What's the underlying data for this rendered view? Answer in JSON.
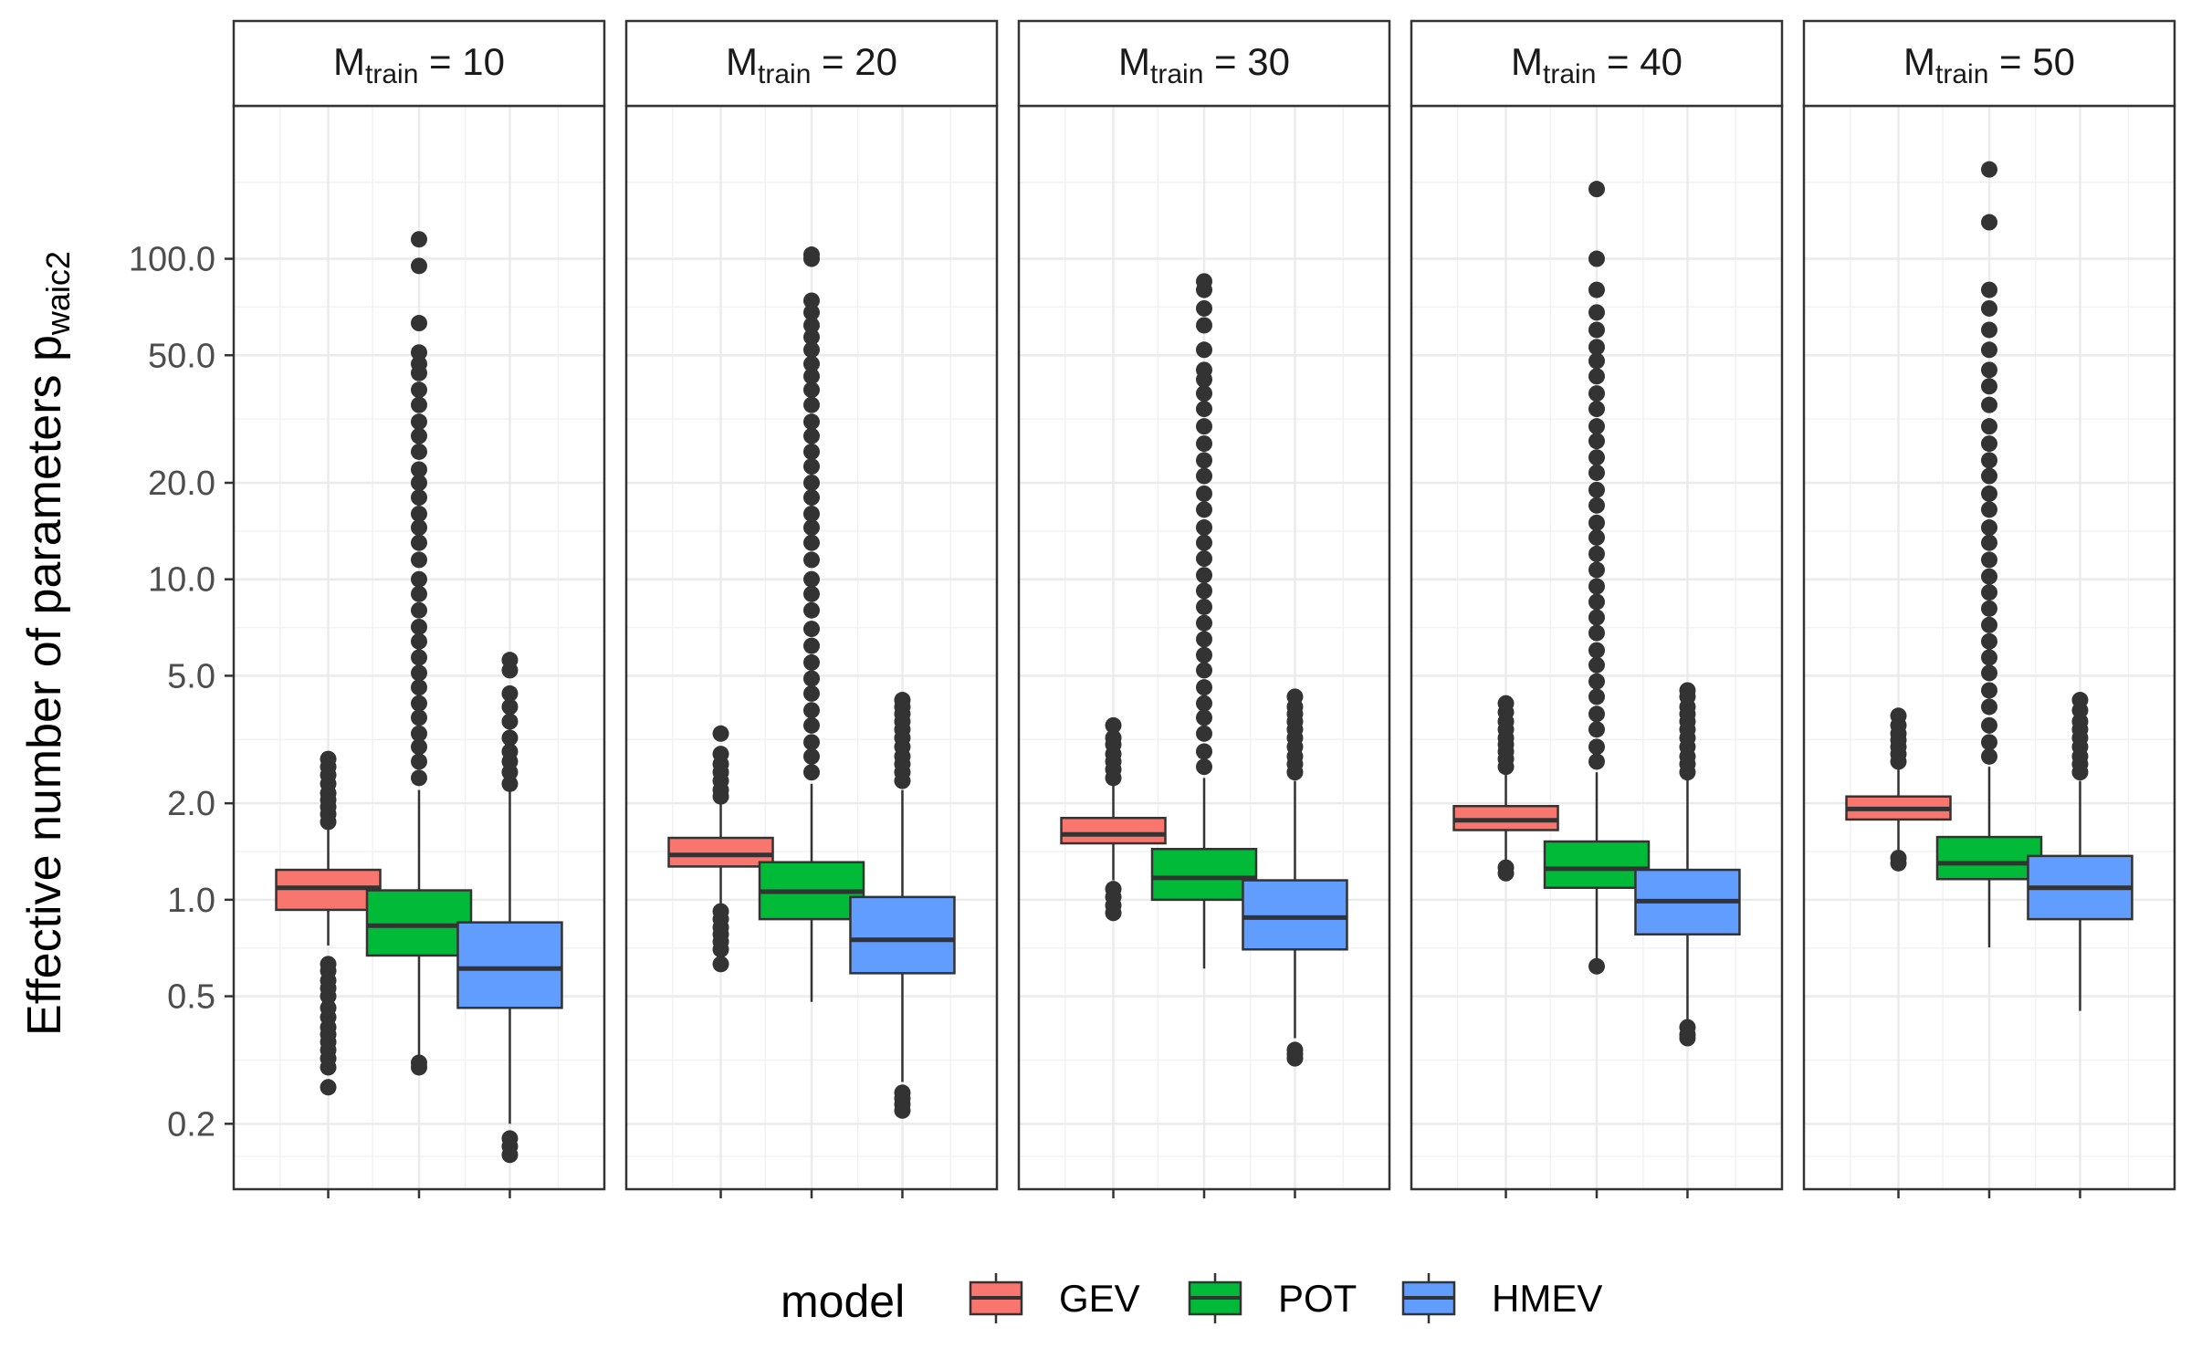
{
  "chart_data": {
    "type": "boxplot",
    "ylabel_main": "Effective number of parameters p",
    "ylabel_sub": "waic2",
    "y_scale": "log10",
    "ylim": [
      0.125,
      300
    ],
    "y_ticks": [
      {
        "value": 0.2,
        "label": "0.2"
      },
      {
        "value": 0.5,
        "label": "0.5"
      },
      {
        "value": 1,
        "label": "1.0"
      },
      {
        "value": 2,
        "label": "2.0"
      },
      {
        "value": 5,
        "label": "5.0"
      },
      {
        "value": 10,
        "label": "10.0"
      },
      {
        "value": 20,
        "label": "20.0"
      },
      {
        "value": 50,
        "label": "50.0"
      },
      {
        "value": 100,
        "label": "100.0"
      }
    ],
    "grid": true,
    "legend": {
      "title": "model",
      "position": "bottom",
      "entries": [
        {
          "name": "GEV",
          "color": "#F8766D"
        },
        {
          "name": "POT",
          "color": "#00BA38"
        },
        {
          "name": "HMEV",
          "color": "#619CFF"
        }
      ]
    },
    "facets": [
      {
        "strip_main": "M",
        "strip_sub": "train",
        "strip_value": " = 10",
        "boxes": [
          {
            "model": "GEV",
            "q1": 0.93,
            "median": 1.09,
            "q3": 1.24,
            "whisker_low": 0.72,
            "whisker_high": 1.65,
            "outliers_low": [
              0.26,
              0.3,
              0.32,
              0.34,
              0.36,
              0.38,
              0.4,
              0.43,
              0.46,
              0.5,
              0.53,
              0.56,
              0.6,
              0.63
            ],
            "outliers_high": [
              1.75,
              1.85,
              1.95,
              2.05,
              2.15,
              2.3,
              2.45,
              2.6,
              2.75
            ]
          },
          {
            "model": "POT",
            "q1": 0.67,
            "median": 0.83,
            "q3": 1.07,
            "whisker_low": 0.32,
            "whisker_high": 2.2,
            "outliers_low": [
              0.3,
              0.31
            ],
            "outliers_high": [
              2.4,
              2.7,
              3.0,
              3.3,
              3.7,
              4.1,
              4.6,
              5.1,
              5.7,
              6.4,
              7.1,
              8,
              9,
              10,
              11.5,
              13,
              14.5,
              16,
              18,
              20,
              22,
              25,
              28,
              31,
              35,
              39,
              44,
              47,
              51,
              63,
              95,
              115
            ]
          },
          {
            "model": "HMEV",
            "q1": 0.46,
            "median": 0.61,
            "q3": 0.85,
            "whisker_low": 0.2,
            "whisker_high": 2.2,
            "outliers_low": [
              0.16,
              0.17,
              0.18
            ],
            "outliers_high": [
              2.3,
              2.5,
              2.7,
              2.9,
              3.2,
              3.6,
              4.0,
              4.4,
              5.2,
              5.6
            ]
          }
        ]
      },
      {
        "strip_main": "M",
        "strip_sub": "train",
        "strip_value": " = 20",
        "boxes": [
          {
            "model": "GEV",
            "q1": 1.27,
            "median": 1.38,
            "q3": 1.56,
            "whisker_low": 0.97,
            "whisker_high": 2.0,
            "outliers_low": [
              0.63,
              0.7,
              0.74,
              0.78,
              0.82,
              0.87,
              0.92
            ],
            "outliers_high": [
              2.1,
              2.2,
              2.35,
              2.5,
              2.65,
              2.85,
              3.3
            ]
          },
          {
            "model": "POT",
            "q1": 0.87,
            "median": 1.06,
            "q3": 1.31,
            "whisker_low": 0.48,
            "whisker_high": 2.3,
            "outliers_low": [],
            "outliers_high": [
              2.5,
              2.8,
              3.1,
              3.5,
              3.9,
              4.4,
              4.9,
              5.5,
              6.2,
              7,
              8,
              9,
              10,
              11.5,
              13,
              14.5,
              16,
              18,
              20,
              22.5,
              25,
              28,
              31,
              35,
              39,
              43,
              47,
              52,
              57,
              62,
              68,
              74,
              100,
              103
            ]
          },
          {
            "model": "HMEV",
            "q1": 0.59,
            "median": 0.75,
            "q3": 1.02,
            "whisker_low": 0.27,
            "whisker_high": 2.2,
            "outliers_low": [
              0.22,
              0.23,
              0.24,
              0.25
            ],
            "outliers_high": [
              2.35,
              2.5,
              2.65,
              2.8,
              3.0,
              3.2,
              3.4,
              3.6,
              3.8,
              4.0,
              4.2
            ]
          }
        ]
      },
      {
        "strip_main": "M",
        "strip_sub": "train",
        "strip_value": " = 30",
        "boxes": [
          {
            "model": "GEV",
            "q1": 1.5,
            "median": 1.6,
            "q3": 1.8,
            "whisker_low": 1.15,
            "whisker_high": 2.3,
            "outliers_low": [
              0.91,
              0.96,
              1.02,
              1.08
            ],
            "outliers_high": [
              2.4,
              2.55,
              2.7,
              2.85,
              3.05,
              3.2,
              3.5
            ]
          },
          {
            "model": "POT",
            "q1": 1.0,
            "median": 1.17,
            "q3": 1.44,
            "whisker_low": 0.61,
            "whisker_high": 2.4,
            "outliers_low": [],
            "outliers_high": [
              2.6,
              2.9,
              3.3,
              3.7,
              4.1,
              4.6,
              5.2,
              5.8,
              6.5,
              7.3,
              8.2,
              9.2,
              10.3,
              11.6,
              13,
              14.5,
              16.5,
              18.5,
              21,
              23.5,
              26.5,
              30,
              34,
              38,
              42,
              45,
              52,
              62,
              70,
              80,
              85
            ]
          },
          {
            "model": "HMEV",
            "q1": 0.7,
            "median": 0.88,
            "q3": 1.15,
            "whisker_low": 0.37,
            "whisker_high": 2.35,
            "outliers_low": [
              0.32,
              0.33,
              0.34
            ],
            "outliers_high": [
              2.5,
              2.65,
              2.8,
              3.0,
              3.2,
              3.4,
              3.6,
              3.8,
              4.0,
              4.3
            ]
          }
        ]
      },
      {
        "strip_main": "M",
        "strip_sub": "train",
        "strip_value": " = 40",
        "boxes": [
          {
            "model": "GEV",
            "q1": 1.65,
            "median": 1.77,
            "q3": 1.96,
            "whisker_low": 1.3,
            "whisker_high": 2.5,
            "outliers_low": [
              1.21,
              1.26
            ],
            "outliers_high": [
              2.6,
              2.75,
              2.9,
              3.05,
              3.2,
              3.4,
              3.6,
              3.85,
              4.1
            ]
          },
          {
            "model": "POT",
            "q1": 1.09,
            "median": 1.25,
            "q3": 1.52,
            "whisker_low": 0.63,
            "whisker_high": 2.5,
            "outliers_low": [
              0.62
            ],
            "outliers_high": [
              2.7,
              3.0,
              3.4,
              3.8,
              4.3,
              4.8,
              5.4,
              6.0,
              6.8,
              7.6,
              8.5,
              9.5,
              10.7,
              12,
              13.5,
              15,
              17,
              19,
              21.5,
              24,
              27,
              30,
              34,
              38,
              43,
              48,
              53,
              60,
              68,
              80,
              100,
              165
            ]
          },
          {
            "model": "HMEV",
            "q1": 0.78,
            "median": 0.99,
            "q3": 1.24,
            "whisker_low": 0.42,
            "whisker_high": 2.4,
            "outliers_low": [
              0.37,
              0.38,
              0.4
            ],
            "outliers_high": [
              2.5,
              2.65,
              2.8,
              3.0,
              3.2,
              3.4,
              3.6,
              3.8,
              4.0,
              4.3,
              4.5
            ]
          }
        ]
      },
      {
        "strip_main": "M",
        "strip_sub": "train",
        "strip_value": " = 50",
        "boxes": [
          {
            "model": "GEV",
            "q1": 1.78,
            "median": 1.92,
            "q3": 2.1,
            "whisker_low": 1.38,
            "whisker_high": 2.6,
            "outliers_low": [
              1.3,
              1.35
            ],
            "outliers_high": [
              2.7,
              2.85,
              3.0,
              3.15,
              3.3,
              3.5,
              3.75
            ]
          },
          {
            "model": "POT",
            "q1": 1.16,
            "median": 1.3,
            "q3": 1.57,
            "whisker_low": 0.71,
            "whisker_high": 2.6,
            "outliers_low": [],
            "outliers_high": [
              2.8,
              3.1,
              3.5,
              4.0,
              4.5,
              5.1,
              5.7,
              6.4,
              7.2,
              8.1,
              9.1,
              10.2,
              11.5,
              13,
              14.5,
              16.5,
              18.5,
              21,
              23.5,
              26.5,
              30,
              35,
              40,
              45,
              52,
              60,
              70,
              80,
              130,
              190
            ]
          },
          {
            "model": "HMEV",
            "q1": 0.87,
            "median": 1.09,
            "q3": 1.37,
            "whisker_low": 0.45,
            "whisker_high": 2.35,
            "outliers_low": [],
            "outliers_high": [
              2.5,
              2.65,
              2.8,
              3.0,
              3.2,
              3.4,
              3.6,
              3.9,
              4.2
            ]
          }
        ]
      }
    ]
  }
}
